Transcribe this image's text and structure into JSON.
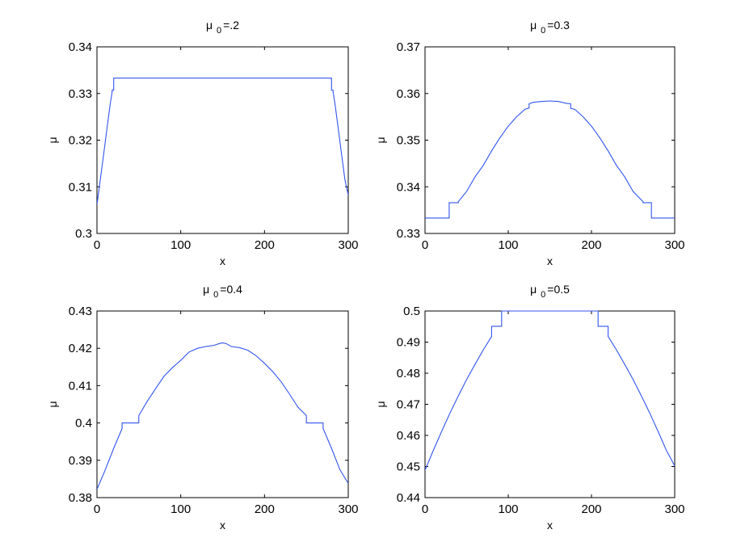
{
  "chart_data": [
    {
      "type": "line",
      "title_prefix": "μ",
      "title_sub": "0",
      "title_suffix": "=.2",
      "xlabel": "x",
      "ylabel": "μ",
      "xlim": [
        0,
        300
      ],
      "ylim": [
        0.3,
        0.34
      ],
      "xticks": [
        "0",
        "100",
        "200",
        "300"
      ],
      "yticks": [
        "0.3",
        "0.31",
        "0.32",
        "0.33",
        "0.34"
      ],
      "line_color": "#3355ee",
      "series": [
        {
          "x": [
            0,
            4,
            8,
            12,
            16,
            18,
            18,
            20,
            20,
            22,
            278,
            280,
            280,
            282,
            282,
            284,
            288,
            292,
            296,
            300
          ],
          "values": [
            0.3062,
            0.3115,
            0.317,
            0.3225,
            0.328,
            0.3302,
            0.3307,
            0.3307,
            0.3333,
            0.3333,
            0.3333,
            0.3333,
            0.3307,
            0.3307,
            0.3302,
            0.328,
            0.3225,
            0.317,
            0.3115,
            0.3082
          ]
        }
      ]
    },
    {
      "type": "line",
      "title_prefix": "μ",
      "title_sub": "0",
      "title_suffix": "=0.3",
      "xlabel": "x",
      "ylabel": "μ",
      "xlim": [
        0,
        300
      ],
      "ylim": [
        0.33,
        0.37
      ],
      "xticks": [
        "0",
        "100",
        "200",
        "300"
      ],
      "yticks": [
        "0.33",
        "0.34",
        "0.35",
        "0.36",
        "0.37"
      ],
      "line_color": "#3355ee",
      "series": [
        {
          "x": [
            0,
            29,
            29,
            40,
            40,
            50,
            60,
            70,
            80,
            90,
            100,
            110,
            120,
            125,
            125,
            130,
            140,
            150,
            160,
            170,
            175,
            175,
            180,
            190,
            200,
            210,
            220,
            230,
            240,
            250,
            262,
            262,
            272,
            272,
            300
          ],
          "values": [
            0.3333,
            0.3333,
            0.3366,
            0.3366,
            0.3368,
            0.339,
            0.3421,
            0.3446,
            0.3477,
            0.3505,
            0.353,
            0.355,
            0.3566,
            0.3569,
            0.3578,
            0.3581,
            0.3583,
            0.3584,
            0.3583,
            0.3579,
            0.3578,
            0.3568,
            0.3566,
            0.355,
            0.353,
            0.3505,
            0.3477,
            0.3446,
            0.3421,
            0.339,
            0.3368,
            0.3366,
            0.3366,
            0.3333,
            0.3333
          ]
        }
      ]
    },
    {
      "type": "line",
      "title_prefix": "μ",
      "title_sub": "0",
      "title_suffix": "=0.4",
      "xlabel": "x",
      "ylabel": "μ",
      "xlim": [
        0,
        300
      ],
      "ylim": [
        0.38,
        0.43
      ],
      "xticks": [
        "0",
        "100",
        "200",
        "300"
      ],
      "yticks": [
        "0.38",
        "0.39",
        "0.4",
        "0.41",
        "0.42",
        "0.43"
      ],
      "line_color": "#3355ee",
      "series": [
        {
          "x": [
            0,
            10,
            20,
            30,
            30,
            50,
            50,
            60,
            70,
            80,
            90,
            100,
            110,
            120,
            130,
            140,
            145,
            150,
            155,
            160,
            170,
            180,
            190,
            200,
            210,
            220,
            230,
            240,
            250,
            250,
            270,
            270,
            280,
            290,
            300
          ],
          "values": [
            0.3822,
            0.3875,
            0.3932,
            0.3985,
            0.4,
            0.4,
            0.402,
            0.4058,
            0.4092,
            0.4125,
            0.4148,
            0.4168,
            0.419,
            0.42,
            0.4205,
            0.4208,
            0.4212,
            0.4215,
            0.4212,
            0.4205,
            0.4202,
            0.4195,
            0.418,
            0.416,
            0.4137,
            0.411,
            0.4077,
            0.4042,
            0.402,
            0.4,
            0.4,
            0.3985,
            0.3932,
            0.3875,
            0.3838
          ]
        }
      ]
    },
    {
      "type": "line",
      "title_prefix": "μ",
      "title_sub": "0",
      "title_suffix": "=0.5",
      "xlabel": "x",
      "ylabel": "μ",
      "xlim": [
        0,
        300
      ],
      "ylim": [
        0.44,
        0.5
      ],
      "xticks": [
        "0",
        "100",
        "200",
        "300"
      ],
      "yticks": [
        "0.44",
        "0.45",
        "0.46",
        "0.47",
        "0.48",
        "0.49",
        "0.5"
      ],
      "line_color": "#3355ee",
      "series": [
        {
          "x": [
            0,
            10,
            20,
            30,
            40,
            50,
            60,
            70,
            80,
            80,
            92,
            92,
            208,
            208,
            220,
            220,
            230,
            240,
            250,
            260,
            270,
            280,
            290,
            300
          ],
          "values": [
            0.4488,
            0.4552,
            0.4613,
            0.4672,
            0.4727,
            0.478,
            0.4828,
            0.4875,
            0.4918,
            0.4951,
            0.4951,
            0.5,
            0.5,
            0.4951,
            0.4951,
            0.4918,
            0.4875,
            0.4828,
            0.478,
            0.4727,
            0.4672,
            0.4613,
            0.4552,
            0.4502
          ]
        }
      ]
    }
  ]
}
